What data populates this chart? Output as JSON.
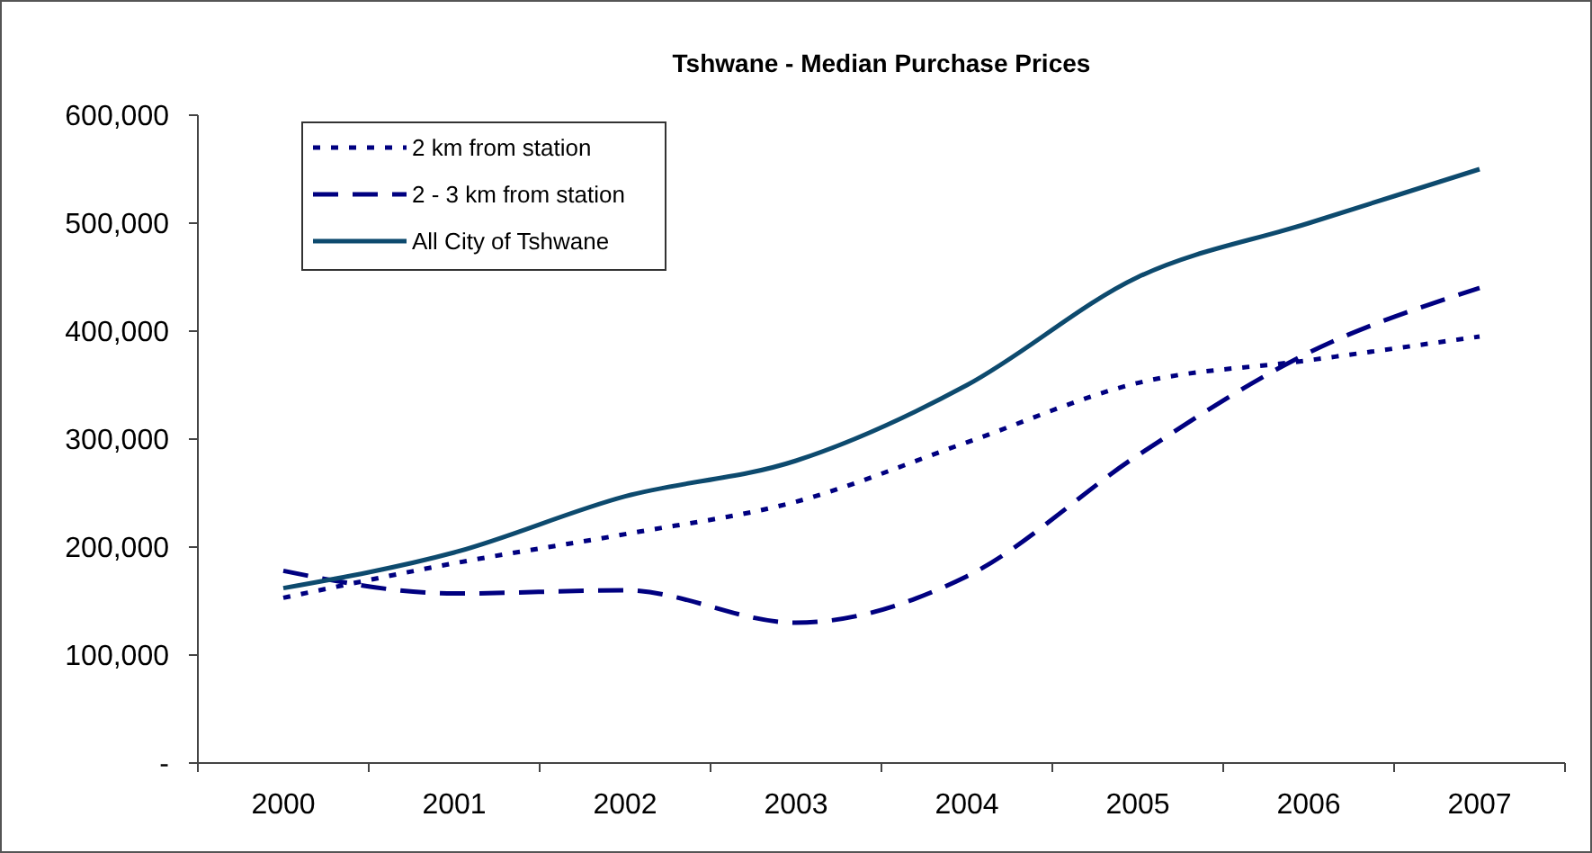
{
  "chart_data": {
    "type": "line",
    "title": "Tshwane - Median Purchase Prices",
    "categories": [
      "2000",
      "2001",
      "2002",
      "2003",
      "2004",
      "2005",
      "2006",
      "2007"
    ],
    "series": [
      {
        "name": "2 km from station",
        "color": "#000080",
        "line_style": "dotted",
        "values": [
          153000,
          185000,
          212000,
          242000,
          297000,
          352000,
          373000,
          395000
        ]
      },
      {
        "name": "2 - 3 km from station",
        "color": "#000080",
        "line_style": "dashed",
        "values": [
          178000,
          157000,
          160000,
          130000,
          173000,
          285000,
          380000,
          440000
        ]
      },
      {
        "name": "All City of Tshwane",
        "color": "#0d4a6e",
        "line_style": "solid",
        "values": [
          162000,
          195000,
          247000,
          280000,
          350000,
          450000,
          500000,
          550000
        ]
      }
    ],
    "ylim": [
      0,
      600000
    ],
    "yticks": [
      {
        "value": 0,
        "label": "-"
      },
      {
        "value": 100000,
        "label": "100,000"
      },
      {
        "value": 200000,
        "label": "200,000"
      },
      {
        "value": 300000,
        "label": "300,000"
      },
      {
        "value": 400000,
        "label": "400,000"
      },
      {
        "value": 500000,
        "label": "500,000"
      },
      {
        "value": 600000,
        "label": "600,000"
      }
    ],
    "grid": false,
    "legend": "top left",
    "marker": "none"
  }
}
